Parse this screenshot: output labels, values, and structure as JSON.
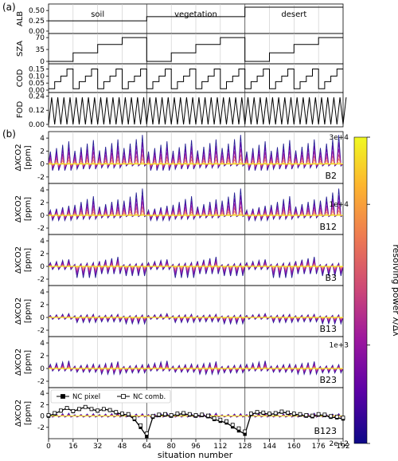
{
  "figure_labels": {
    "a": "(a)",
    "b": "(b)"
  },
  "chart_data": {
    "type": "line",
    "x": {
      "label": "situation number",
      "range": [
        0,
        192
      ],
      "ticks": [
        0,
        16,
        32,
        48,
        64,
        80,
        96,
        112,
        128,
        144,
        160,
        176,
        192
      ],
      "minor_gridlines": [
        16,
        32,
        48,
        64,
        80,
        96,
        112,
        128,
        144,
        160,
        176
      ],
      "major_gridlines": [
        64,
        128
      ]
    },
    "panels_a": [
      {
        "ylabel": "ALB",
        "yticks": [
          "0.50",
          "0.25",
          "0.00"
        ],
        "ylim": [
          0,
          0.6
        ],
        "series": [
          {
            "x": [
              0,
              64,
              64,
              128,
              128,
              192
            ],
            "y": [
              0.25,
              0.25,
              0.35,
              0.35,
              0.58,
              0.58
            ]
          }
        ],
        "annotations": [
          {
            "text": "soil",
            "x": 32
          },
          {
            "text": "vegetation",
            "x": 96
          },
          {
            "text": "desert",
            "x": 160
          }
        ]
      },
      {
        "ylabel": "SZA",
        "yticks": [
          "70",
          "35",
          "0"
        ],
        "ylim": [
          0,
          75
        ],
        "series": [
          {
            "x": [
              0,
              16,
              16,
              32,
              32,
              48,
              48,
              64,
              64,
              80,
              80,
              96,
              96,
              112,
              112,
              128,
              128,
              144,
              144,
              160,
              160,
              176,
              176,
              192
            ],
            "y": [
              0,
              0,
              25,
              25,
              50,
              50,
              70,
              70,
              0,
              0,
              25,
              25,
              50,
              50,
              70,
              70,
              0,
              0,
              25,
              25,
              50,
              50,
              70,
              70
            ]
          }
        ]
      },
      {
        "ylabel": "COD",
        "yticks": [
          "0.15",
          "0.10",
          "0.05",
          "0.00"
        ],
        "ylim": [
          0,
          0.17
        ],
        "period": 16,
        "levels": [
          0.01,
          0.06,
          0.1,
          0.15
        ]
      },
      {
        "ylabel": "FOD",
        "yticks": [
          "0.24",
          "0.12",
          "0.00"
        ],
        "ylim": [
          0,
          0.25
        ],
        "sawtooth_period": 4,
        "sawtooth_range": [
          0.0,
          0.23
        ]
      }
    ],
    "panels_b": [
      {
        "ylabel": "ΔXCO2\n[ppm]",
        "tag": "B2",
        "ylim": [
          -3,
          5
        ],
        "yticks": [
          4,
          2,
          0,
          -2
        ],
        "max_by_quarter": [
          3.5,
          3.7,
          3.8,
          4.5
        ],
        "neg": [
          -1.0,
          -0.8,
          -0.6,
          -0.3
        ]
      },
      {
        "ylabel": "ΔXCO2\n[ppm]",
        "tag": "B12",
        "ylim": [
          -3,
          5
        ],
        "yticks": [
          4,
          2,
          0,
          -2
        ],
        "max_by_quarter": [
          1.5,
          3.0,
          2.5,
          4.2
        ],
        "neg": [
          -0.8,
          -0.6,
          -0.4,
          -0.2
        ]
      },
      {
        "ylabel": "ΔXCO2\n[ppm]",
        "tag": "B3",
        "ylim": [
          -3,
          5
        ],
        "yticks": [
          4,
          2,
          0,
          -2
        ],
        "max_by_quarter": [
          1.1,
          0.6,
          1.5,
          0.5
        ],
        "neg": [
          -0.5,
          -1.8,
          -1.2,
          -1.5
        ]
      },
      {
        "ylabel": "ΔXCO2\n[ppm]",
        "tag": "B13",
        "ylim": [
          -3,
          5
        ],
        "yticks": [
          4,
          2,
          0,
          -2
        ],
        "max_by_quarter": [
          0.6,
          0.5,
          0.5,
          0.4
        ],
        "neg": [
          -0.3,
          -0.8,
          -0.7,
          -1.0
        ]
      },
      {
        "ylabel": "ΔXCO2\n[ppm]",
        "tag": "B23",
        "ylim": [
          -3,
          5
        ],
        "yticks": [
          4,
          2,
          0,
          -2
        ],
        "max_by_quarter": [
          1.2,
          0.7,
          1.1,
          0.6
        ],
        "neg": [
          -0.4,
          -0.6,
          -0.9,
          -0.7
        ]
      },
      {
        "ylabel": "ΔXCO2\n[ppm]",
        "tag": "B123",
        "ylim": [
          -4,
          5
        ],
        "yticks": [
          4,
          2,
          0,
          -2
        ],
        "max_by_quarter": [
          0.5,
          0.4,
          0.5,
          0.4
        ],
        "neg": [
          -0.2,
          -0.2,
          -0.2,
          -0.2
        ],
        "legend": {
          "position": "top-left",
          "entries": [
            {
              "label": "NC pixel",
              "marker": "filled-square"
            },
            {
              "label": "NC comb.",
              "marker": "open-square"
            }
          ]
        }
      }
    ],
    "colorbar": {
      "label": "resolving power λ/Δλ",
      "ticks": [
        "3e+4",
        "1e+4",
        "1e+3",
        "2e+2"
      ],
      "scale": "log",
      "range": [
        200,
        30000
      ],
      "colormap": [
        "#0d0887",
        "#5c01a6",
        "#9c179e",
        "#cc4778",
        "#ed7953",
        "#fdb42f",
        "#f0f921"
      ]
    },
    "nc_pixel": {
      "x": [
        0,
        4,
        8,
        12,
        16,
        20,
        24,
        28,
        32,
        36,
        40,
        44,
        48,
        52,
        56,
        60,
        64,
        68,
        72,
        76,
        80,
        84,
        88,
        92,
        96,
        100,
        104,
        108,
        112,
        116,
        120,
        124,
        128,
        132,
        136,
        140,
        144,
        148,
        152,
        156,
        160,
        164,
        168,
        172,
        176,
        180,
        184,
        188,
        192
      ],
      "y": [
        0.0,
        0.4,
        0.9,
        1.4,
        0.8,
        1.2,
        1.6,
        1.2,
        0.9,
        1.2,
        1.0,
        0.6,
        0.3,
        0.2,
        -0.6,
        -2.0,
        -3.6,
        -0.2,
        0.1,
        0.2,
        0.0,
        0.3,
        0.4,
        0.2,
        0.0,
        0.1,
        -0.1,
        -0.6,
        -0.9,
        -1.2,
        -1.9,
        -2.6,
        -3.2,
        0.3,
        0.6,
        0.5,
        0.3,
        0.4,
        0.7,
        0.5,
        0.3,
        0.2,
        0.0,
        -0.1,
        0.2,
        0.1,
        -0.2,
        -0.3,
        -0.5
      ]
    }
  }
}
